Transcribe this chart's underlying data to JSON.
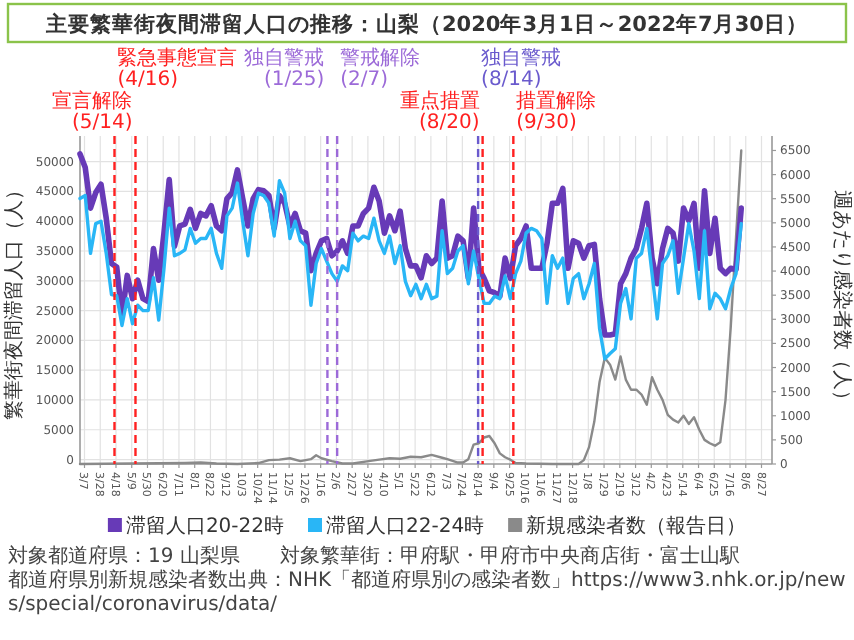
{
  "chart_data": {
    "type": "line",
    "title": "主要繁華街夜間滞留人口の推移：山梨（2020年3月1日～2022年7月30日）",
    "ylabel": "繁華街夜間滞留人口（人）",
    "y2label": "週あたり感染者数（人）",
    "x": [
      "2020-03-01",
      "2020-03-08",
      "2020-03-15",
      "2020-03-22",
      "2020-03-29",
      "2020-04-05",
      "2020-04-12",
      "2020-04-19",
      "2020-04-26",
      "2020-05-03",
      "2020-05-10",
      "2020-05-17",
      "2020-05-24",
      "2020-05-31",
      "2020-06-07",
      "2020-06-14",
      "2020-06-21",
      "2020-06-28",
      "2020-07-05",
      "2020-07-12",
      "2020-07-19",
      "2020-07-26",
      "2020-08-02",
      "2020-08-09",
      "2020-08-16",
      "2020-08-23",
      "2020-08-30",
      "2020-09-06",
      "2020-09-13",
      "2020-09-20",
      "2020-09-27",
      "2020-10-04",
      "2020-10-11",
      "2020-10-18",
      "2020-10-25",
      "2020-11-01",
      "2020-11-08",
      "2020-11-15",
      "2020-11-22",
      "2020-11-29",
      "2020-12-06",
      "2020-12-13",
      "2020-12-20",
      "2020-12-27",
      "2021-01-03",
      "2021-01-10",
      "2021-01-17",
      "2021-01-24",
      "2021-01-31",
      "2021-02-07",
      "2021-02-14",
      "2021-02-21",
      "2021-02-28",
      "2021-03-07",
      "2021-03-14",
      "2021-03-21",
      "2021-03-28",
      "2021-04-04",
      "2021-04-11",
      "2021-04-18",
      "2021-04-25",
      "2021-05-02",
      "2021-05-09",
      "2021-05-16",
      "2021-05-23",
      "2021-05-30",
      "2021-06-06",
      "2021-06-13",
      "2021-06-20",
      "2021-06-27",
      "2021-07-04",
      "2021-07-11",
      "2021-07-18",
      "2021-07-25",
      "2021-08-01",
      "2021-08-08",
      "2021-08-15",
      "2021-08-22",
      "2021-08-29",
      "2021-09-05",
      "2021-09-12",
      "2021-09-19",
      "2021-09-26",
      "2021-10-03",
      "2021-10-10",
      "2021-10-17",
      "2021-10-24",
      "2021-10-31",
      "2021-11-07",
      "2021-11-14",
      "2021-11-21",
      "2021-11-28",
      "2021-12-05",
      "2021-12-12",
      "2021-12-19",
      "2021-12-26",
      "2022-01-02",
      "2022-01-09",
      "2022-01-16",
      "2022-01-23",
      "2022-01-30",
      "2022-02-06",
      "2022-02-13",
      "2022-02-20",
      "2022-02-27",
      "2022-03-06",
      "2022-03-13",
      "2022-03-20",
      "2022-03-27",
      "2022-04-03",
      "2022-04-10",
      "2022-04-17",
      "2022-04-24",
      "2022-05-01",
      "2022-05-08",
      "2022-05-15",
      "2022-05-22",
      "2022-05-29",
      "2022-06-05",
      "2022-06-12",
      "2022-06-19",
      "2022-06-26",
      "2022-07-03",
      "2022-07-10",
      "2022-07-17",
      "2022-07-24",
      "2022-07-31"
    ],
    "series": [
      {
        "name": "滞留人口20-22時",
        "color": "#673ab7",
        "values": [
          51300,
          49000,
          42200,
          44800,
          46200,
          40500,
          32900,
          32300,
          24100,
          30900,
          27000,
          30100,
          27000,
          26500,
          35400,
          30100,
          38000,
          47000,
          35800,
          39200,
          39500,
          42000,
          38800,
          41300,
          40900,
          42600,
          39200,
          38400,
          43800,
          44800,
          48600,
          43800,
          39200,
          43800,
          45300,
          45100,
          44300,
          38800,
          44300,
          43000,
          39200,
          41300,
          38400,
          38000,
          31700,
          34600,
          36700,
          37100,
          34200,
          35000,
          36700,
          34600,
          39200,
          39200,
          41300,
          42200,
          45700,
          43400,
          38000,
          40900,
          38400,
          41700,
          35400,
          32500,
          32500,
          30500,
          34200,
          32900,
          33800,
          43400,
          33800,
          34200,
          37500,
          36700,
          30400,
          42200,
          32100,
          30400,
          28300,
          28000,
          27400,
          33800,
          30400,
          35900,
          37100,
          39200,
          32100,
          32100,
          32100,
          36300,
          43000,
          43000,
          45500,
          32100,
          36700,
          36300,
          33800,
          35900,
          36100,
          27000,
          20900,
          20900,
          21100,
          29500,
          31200,
          33800,
          35400,
          38800,
          43000,
          33800,
          29500,
          35400,
          38800,
          38000,
          33300,
          42200,
          40100,
          43000,
          32100,
          45100,
          34600,
          40500,
          32100,
          31200,
          32100,
          31900,
          42200
        ]
      },
      {
        "name": "滞留人口22-24時",
        "color": "#29b6f6",
        "values": [
          43800,
          44300,
          34600,
          39600,
          40000,
          34600,
          27700,
          27500,
          22500,
          27000,
          22800,
          25900,
          25000,
          25000,
          30500,
          23400,
          32000,
          42200,
          34200,
          34600,
          35200,
          38800,
          36300,
          37100,
          37100,
          38800,
          34600,
          32100,
          40900,
          42200,
          46400,
          40000,
          34200,
          41300,
          44700,
          44300,
          43000,
          37500,
          46800,
          44700,
          37100,
          40000,
          36700,
          35900,
          25900,
          32900,
          35400,
          33300,
          31200,
          29900,
          32500,
          31700,
          38000,
          36700,
          37500,
          37100,
          40500,
          36700,
          34600,
          37500,
          32900,
          35900,
          29900,
          27500,
          29400,
          27000,
          29400,
          27000,
          27400,
          38400,
          31200,
          32100,
          35000,
          35900,
          29500,
          35000,
          30400,
          26200,
          26200,
          27400,
          27000,
          30800,
          27000,
          31200,
          33300,
          38000,
          38800,
          38400,
          37100,
          26200,
          34200,
          32100,
          33800,
          26200,
          30400,
          31200,
          27000,
          29500,
          32900,
          22000,
          16900,
          17800,
          18600,
          26200,
          28700,
          23600,
          33800,
          34600,
          38800,
          31200,
          23600,
          32900,
          34200,
          36700,
          27900,
          33800,
          39600,
          35000,
          27000,
          38400,
          25300,
          27900,
          27000,
          25300,
          28700,
          31200,
          39600
        ]
      },
      {
        "name": "新規感染者数（報告日）",
        "color": "#8a8a8a",
        "axis": "y2",
        "x": [
          "2020-03-01",
          "2020-05-10",
          "2020-07-19",
          "2020-08-09",
          "2020-08-30",
          "2020-09-27",
          "2020-10-25",
          "2020-11-08",
          "2020-11-22",
          "2020-12-06",
          "2020-12-20",
          "2021-01-03",
          "2021-01-10",
          "2021-01-17",
          "2021-01-31",
          "2021-02-14",
          "2021-02-28",
          "2021-03-21",
          "2021-04-04",
          "2021-04-18",
          "2021-05-02",
          "2021-05-16",
          "2021-05-30",
          "2021-06-13",
          "2021-06-27",
          "2021-07-04",
          "2021-07-18",
          "2021-07-25",
          "2021-08-01",
          "2021-08-08",
          "2021-08-15",
          "2021-08-22",
          "2021-08-29",
          "2021-09-05",
          "2021-09-12",
          "2021-09-19",
          "2021-09-26",
          "2021-10-03",
          "2021-10-17",
          "2021-11-21",
          "2021-12-26",
          "2022-01-02",
          "2022-01-09",
          "2022-01-16",
          "2022-01-23",
          "2022-01-30",
          "2022-02-06",
          "2022-02-13",
          "2022-02-20",
          "2022-02-27",
          "2022-03-06",
          "2022-03-13",
          "2022-03-20",
          "2022-03-27",
          "2022-04-03",
          "2022-04-10",
          "2022-04-17",
          "2022-04-24",
          "2022-05-01",
          "2022-05-08",
          "2022-05-15",
          "2022-05-22",
          "2022-05-29",
          "2022-06-05",
          "2022-06-12",
          "2022-06-19",
          "2022-06-26",
          "2022-07-03",
          "2022-07-10",
          "2022-07-17",
          "2022-07-24",
          "2022-07-31"
        ],
        "values": [
          0,
          10,
          20,
          30,
          10,
          0,
          20,
          80,
          90,
          120,
          60,
          100,
          180,
          120,
          60,
          10,
          10,
          60,
          90,
          120,
          110,
          150,
          140,
          190,
          130,
          100,
          30,
          30,
          100,
          400,
          430,
          550,
          580,
          430,
          220,
          140,
          90,
          20,
          10,
          0,
          0,
          80,
          350,
          880,
          1700,
          2200,
          2060,
          1750,
          2230,
          1750,
          1540,
          1540,
          1440,
          1230,
          1800,
          1540,
          1330,
          1020,
          920,
          860,
          1000,
          830,
          970,
          710,
          500,
          430,
          380,
          450,
          1330,
          2840,
          4700,
          6500
        ]
      }
    ],
    "xlim": [
      "2020-03-01",
      "2022-09-10"
    ],
    "xticks": [
      {
        "value": "2020-03-07",
        "label": "3/7"
      },
      {
        "value": "2020-03-28",
        "label": "3/28"
      },
      {
        "value": "2020-04-18",
        "label": "4/18"
      },
      {
        "value": "2020-05-09",
        "label": "5/9"
      },
      {
        "value": "2020-05-30",
        "label": "5/30"
      },
      {
        "value": "2020-06-20",
        "label": "6/20"
      },
      {
        "value": "2020-07-11",
        "label": "7/11"
      },
      {
        "value": "2020-08-01",
        "label": "8/1"
      },
      {
        "value": "2020-08-22",
        "label": "8/22"
      },
      {
        "value": "2020-09-12",
        "label": "9/12"
      },
      {
        "value": "2020-10-03",
        "label": "10/3"
      },
      {
        "value": "2020-10-24",
        "label": "10/24"
      },
      {
        "value": "2020-11-14",
        "label": "11/14"
      },
      {
        "value": "2020-12-05",
        "label": "12/5"
      },
      {
        "value": "2020-12-26",
        "label": "12/26"
      },
      {
        "value": "2021-01-16",
        "label": "1/16"
      },
      {
        "value": "2021-02-06",
        "label": "2/6"
      },
      {
        "value": "2021-02-27",
        "label": "2/27"
      },
      {
        "value": "2021-03-20",
        "label": "3/20"
      },
      {
        "value": "2021-04-10",
        "label": "4/10"
      },
      {
        "value": "2021-05-01",
        "label": "5/1"
      },
      {
        "value": "2021-05-22",
        "label": "5/22"
      },
      {
        "value": "2021-06-12",
        "label": "6/12"
      },
      {
        "value": "2021-07-03",
        "label": "7/3"
      },
      {
        "value": "2021-07-24",
        "label": "7/24"
      },
      {
        "value": "2021-08-14",
        "label": "8/14"
      },
      {
        "value": "2021-09-04",
        "label": "9/4"
      },
      {
        "value": "2021-09-25",
        "label": "9/25"
      },
      {
        "value": "2021-10-16",
        "label": "10/16"
      },
      {
        "value": "2021-11-06",
        "label": "11/6"
      },
      {
        "value": "2021-11-27",
        "label": "11/27"
      },
      {
        "value": "2021-12-18",
        "label": "12/18"
      },
      {
        "value": "2022-01-08",
        "label": "1/8"
      },
      {
        "value": "2022-01-29",
        "label": "1/29"
      },
      {
        "value": "2022-02-19",
        "label": "2/19"
      },
      {
        "value": "2022-03-12",
        "label": "3/12"
      },
      {
        "value": "2022-04-02",
        "label": "4/2"
      },
      {
        "value": "2022-04-23",
        "label": "4/23"
      },
      {
        "value": "2022-05-14",
        "label": "5/14"
      },
      {
        "value": "2022-06-04",
        "label": "6/4"
      },
      {
        "value": "2022-06-25",
        "label": "6/25"
      },
      {
        "value": "2022-07-16",
        "label": "7/16"
      },
      {
        "value": "2022-08-06",
        "label": "8/6"
      },
      {
        "value": "2022-08-27",
        "label": "8/27"
      }
    ],
    "ylim": [
      -750,
      54300
    ],
    "yticks": [
      0,
      5000,
      10000,
      15000,
      20000,
      25000,
      30000,
      35000,
      40000,
      45000,
      50000
    ],
    "y2lim": [
      0,
      6800
    ],
    "y2ticks": [
      0,
      500,
      1000,
      1500,
      2000,
      2500,
      3000,
      3500,
      4000,
      4500,
      5000,
      5500,
      6000,
      6500
    ],
    "ref_lines": [
      {
        "axis": "x",
        "value": "2020-04-16",
        "label": "緊急事態宣言(4/16)",
        "color": "#ff2020",
        "line_style": "dashed"
      },
      {
        "axis": "x",
        "value": "2020-05-14",
        "label": "宣言解除(5/14)",
        "color": "#ff2020",
        "line_style": "dashed"
      },
      {
        "axis": "x",
        "value": "2021-01-25",
        "label": "独自警戒(1/25)",
        "color": "#9c6ad8",
        "line_style": "dashed"
      },
      {
        "axis": "x",
        "value": "2021-02-07",
        "label": "警戒解除(2/7)",
        "color": "#9c6ad8",
        "line_style": "dashed"
      },
      {
        "axis": "x",
        "value": "2021-08-14",
        "label": "独自警戒(8/14)",
        "color": "#6a5acd",
        "line_style": "dashed"
      },
      {
        "axis": "x",
        "value": "2021-08-20",
        "label": "重点措置(8/20)",
        "color": "#ff2020",
        "line_style": "dashed"
      },
      {
        "axis": "x",
        "value": "2021-09-30",
        "label": "措置解除(9/30)",
        "color": "#ff2020",
        "line_style": "dashed"
      }
    ],
    "grid": true,
    "legend": "bottom",
    "annotations": [
      "対象都道府県：19 山梨県　　対象繁華街：甲府駅・甲府市中央商店街・富士山駅",
      "都道府県別新規感染者数出典：NHK「都道府県別の感染者数」https://www3.nhk.or.jp/news/special/coronavirus/data/"
    ]
  }
}
